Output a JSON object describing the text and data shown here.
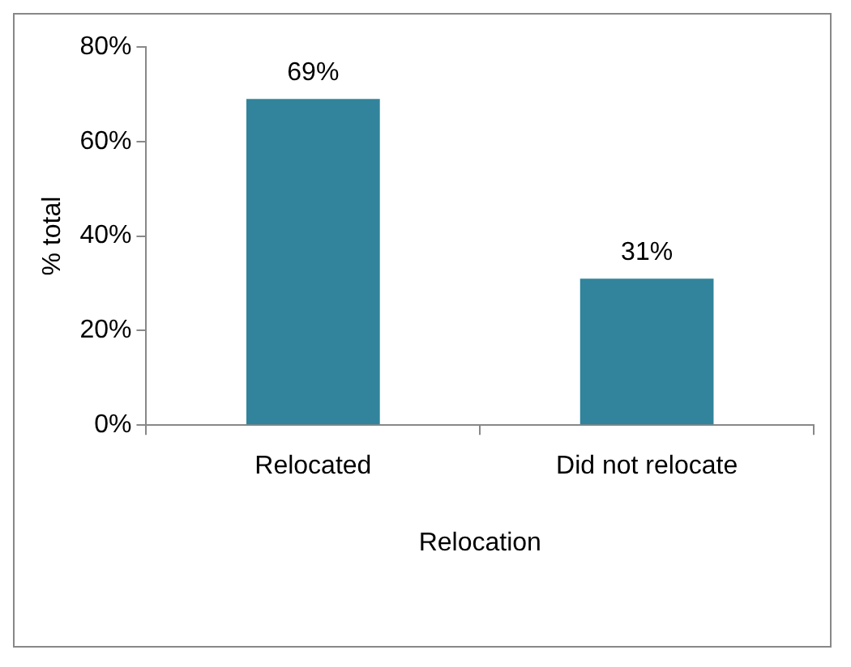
{
  "chart_data": {
    "type": "bar",
    "xlabel": "Relocation",
    "ylabel": "% total",
    "categories": [
      "Relocated",
      "Did not relocate"
    ],
    "values": [
      69,
      31
    ],
    "value_labels": [
      "69%",
      "31%"
    ],
    "color": "#31849b",
    "ylim": [
      0,
      80
    ],
    "yticks": [
      {
        "value": 0,
        "label": "0%"
      },
      {
        "value": 20,
        "label": "20%"
      },
      {
        "value": 40,
        "label": "40%"
      },
      {
        "value": 60,
        "label": "60%"
      },
      {
        "value": 80,
        "label": "80%"
      }
    ],
    "grid": false,
    "legend": false
  }
}
